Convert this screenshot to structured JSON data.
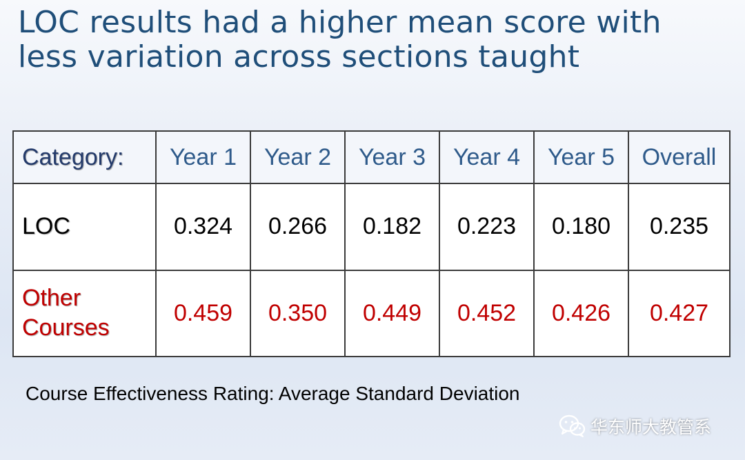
{
  "slide": {
    "title_lines": [
      "LOC results had a higher mean score with",
      "less variation across sections taught"
    ]
  },
  "table": {
    "header": {
      "category": "Category:",
      "columns": [
        "Year 1",
        "Year 2",
        "Year 3",
        "Year 4",
        "Year 5",
        "Overall"
      ]
    },
    "rows": [
      {
        "label": "LOC",
        "values": [
          "0.324",
          "0.266",
          "0.182",
          "0.223",
          "0.180",
          "0.235"
        ]
      },
      {
        "label_lines": [
          "Other",
          "Courses"
        ],
        "values": [
          "0.459",
          "0.350",
          "0.449",
          "0.452",
          "0.426",
          "0.427"
        ]
      }
    ]
  },
  "caption": "Course Effectiveness Rating: Average Standard Deviation",
  "watermark": {
    "icon": "wechat-icon",
    "text": "华东师大教管系"
  },
  "colors": {
    "title": "#1f4e79",
    "header_text": "#2e5a8a",
    "loc_text": "#000000",
    "other_text": "#c00000",
    "border": "#3a3a3a"
  }
}
